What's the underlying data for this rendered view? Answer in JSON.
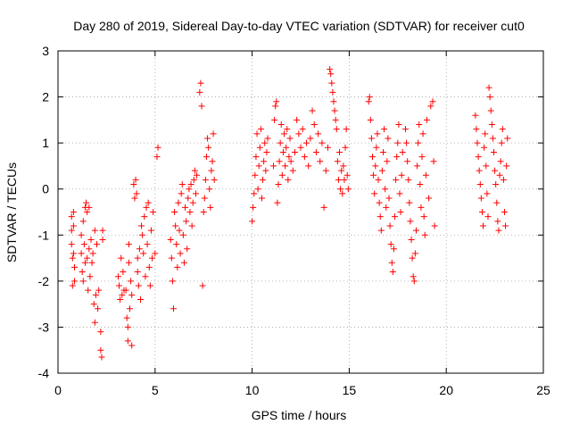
{
  "chart_data": {
    "type": "scatter",
    "title": "Day 280 of 2019, Sidereal Day-to-day VTEC variation (SDTVAR) for receiver cut0",
    "xlabel": "GPS time / hours",
    "ylabel": "SDTVAR / TECUs",
    "xlim": [
      0,
      25
    ],
    "ylim": [
      -4,
      3
    ],
    "xticks": [
      0,
      5,
      10,
      15,
      20,
      25
    ],
    "yticks": [
      -4,
      -3,
      -2,
      -1,
      0,
      1,
      2,
      3
    ],
    "xtick_labels": [
      "0",
      "5",
      "10",
      "15",
      "20",
      "25"
    ],
    "ytick_labels": [
      "-4",
      "-3",
      "-2",
      "-1",
      "0",
      "1",
      "2",
      "3"
    ],
    "grid": true,
    "marker": "+",
    "marker_color": "#ff0000",
    "series": [
      {
        "name": "SDTVAR",
        "points": [
          [
            0.7,
            -0.6
          ],
          [
            0.7,
            -0.9
          ],
          [
            0.7,
            -1.2
          ],
          [
            0.75,
            -1.5
          ],
          [
            0.75,
            -2.1
          ],
          [
            0.8,
            -0.5
          ],
          [
            0.8,
            -0.8
          ],
          [
            0.8,
            -1.4
          ],
          [
            0.85,
            -1.7
          ],
          [
            0.85,
            -2.0
          ],
          [
            1.2,
            -1.0
          ],
          [
            1.2,
            -1.4
          ],
          [
            1.25,
            -1.8
          ],
          [
            1.3,
            -0.7
          ],
          [
            1.3,
            -2.0
          ],
          [
            1.35,
            -1.2
          ],
          [
            1.4,
            -0.4
          ],
          [
            1.4,
            -1.6
          ],
          [
            1.45,
            -0.3
          ],
          [
            1.5,
            -0.5
          ],
          [
            1.5,
            -1.5
          ],
          [
            1.55,
            -2.2
          ],
          [
            1.6,
            -0.4
          ],
          [
            1.6,
            -1.3
          ],
          [
            1.65,
            -1.9
          ],
          [
            1.7,
            -1.1
          ],
          [
            1.75,
            -1.6
          ],
          [
            1.8,
            -1.4
          ],
          [
            1.85,
            -2.5
          ],
          [
            1.9,
            -2.9
          ],
          [
            1.9,
            -0.9
          ],
          [
            1.95,
            -2.3
          ],
          [
            2.0,
            -1.2
          ],
          [
            2.05,
            -2.6
          ],
          [
            2.1,
            -2.2
          ],
          [
            2.2,
            -3.1
          ],
          [
            2.2,
            -3.5
          ],
          [
            2.25,
            -3.65
          ],
          [
            2.3,
            -0.9
          ],
          [
            2.3,
            -1.1
          ],
          [
            3.1,
            -1.9
          ],
          [
            3.15,
            -2.1
          ],
          [
            3.2,
            -2.4
          ],
          [
            3.25,
            -1.5
          ],
          [
            3.3,
            -2.3
          ],
          [
            3.35,
            -1.8
          ],
          [
            3.4,
            -2.2
          ],
          [
            3.5,
            -2.2
          ],
          [
            3.55,
            -2.8
          ],
          [
            3.6,
            -3.0
          ],
          [
            3.6,
            -3.3
          ],
          [
            3.65,
            -1.2
          ],
          [
            3.65,
            -1.6
          ],
          [
            3.7,
            -2.6
          ],
          [
            3.75,
            -2.0
          ],
          [
            3.8,
            -2.3
          ],
          [
            3.8,
            -3.4
          ],
          [
            3.9,
            0.1
          ],
          [
            3.95,
            -0.2
          ],
          [
            4.0,
            0.2
          ],
          [
            4.05,
            -0.1
          ],
          [
            4.1,
            -1.5
          ],
          [
            4.1,
            -1.8
          ],
          [
            4.15,
            -2.1
          ],
          [
            4.2,
            -1.3
          ],
          [
            4.25,
            -2.4
          ],
          [
            4.3,
            -0.8
          ],
          [
            4.35,
            -1.0
          ],
          [
            4.4,
            -1.4
          ],
          [
            4.45,
            -0.6
          ],
          [
            4.5,
            -1.9
          ],
          [
            4.55,
            -0.4
          ],
          [
            4.6,
            -1.2
          ],
          [
            4.65,
            -0.3
          ],
          [
            4.7,
            -1.7
          ],
          [
            4.75,
            -2.1
          ],
          [
            4.8,
            -0.9
          ],
          [
            4.85,
            -1.5
          ],
          [
            4.9,
            -0.5
          ],
          [
            5.0,
            -1.4
          ],
          [
            5.1,
            0.7
          ],
          [
            5.15,
            0.9
          ],
          [
            5.8,
            -1.1
          ],
          [
            5.85,
            -1.5
          ],
          [
            5.9,
            -2.0
          ],
          [
            5.95,
            -2.6
          ],
          [
            6.0,
            -0.5
          ],
          [
            6.05,
            -0.8
          ],
          [
            6.1,
            -1.2
          ],
          [
            6.15,
            -1.7
          ],
          [
            6.2,
            -0.3
          ],
          [
            6.25,
            -0.9
          ],
          [
            6.3,
            -1.4
          ],
          [
            6.35,
            -0.1
          ],
          [
            6.4,
            0.1
          ],
          [
            6.45,
            -1.0
          ],
          [
            6.5,
            -1.6
          ],
          [
            6.55,
            -0.4
          ],
          [
            6.6,
            -0.7
          ],
          [
            6.65,
            -1.3
          ],
          [
            6.7,
            -0.2
          ],
          [
            6.75,
            0.0
          ],
          [
            6.8,
            -0.5
          ],
          [
            6.85,
            0.1
          ],
          [
            6.9,
            -0.8
          ],
          [
            6.95,
            -0.3
          ],
          [
            7.0,
            0.2
          ],
          [
            7.05,
            0.4
          ],
          [
            7.1,
            -0.1
          ],
          [
            7.15,
            0.3
          ],
          [
            7.3,
            2.1
          ],
          [
            7.35,
            2.3
          ],
          [
            7.4,
            1.8
          ],
          [
            7.45,
            -2.1
          ],
          [
            7.5,
            -0.5
          ],
          [
            7.55,
            -0.2
          ],
          [
            7.6,
            0.2
          ],
          [
            7.65,
            0.7
          ],
          [
            7.7,
            1.1
          ],
          [
            7.75,
            0.9
          ],
          [
            7.8,
            0.0
          ],
          [
            7.85,
            -0.4
          ],
          [
            7.9,
            0.4
          ],
          [
            7.95,
            0.6
          ],
          [
            8.0,
            1.2
          ],
          [
            8.05,
            0.2
          ],
          [
            10.0,
            -0.7
          ],
          [
            10.05,
            -0.4
          ],
          [
            10.1,
            -0.1
          ],
          [
            10.15,
            0.3
          ],
          [
            10.2,
            0.7
          ],
          [
            10.25,
            1.2
          ],
          [
            10.3,
            0.0
          ],
          [
            10.35,
            0.5
          ],
          [
            10.4,
            0.9
          ],
          [
            10.45,
            1.3
          ],
          [
            10.5,
            -0.2
          ],
          [
            10.55,
            0.2
          ],
          [
            10.6,
            0.6
          ],
          [
            10.65,
            1.0
          ],
          [
            10.7,
            0.4
          ],
          [
            10.75,
            0.8
          ],
          [
            10.8,
            1.1
          ],
          [
            11.1,
            0.5
          ],
          [
            11.15,
            1.5
          ],
          [
            11.2,
            1.8
          ],
          [
            11.25,
            1.9
          ],
          [
            11.3,
            -0.3
          ],
          [
            11.35,
            0.1
          ],
          [
            11.4,
            0.6
          ],
          [
            11.45,
            1.0
          ],
          [
            11.5,
            1.4
          ],
          [
            11.55,
            0.3
          ],
          [
            11.6,
            0.8
          ],
          [
            11.65,
            1.2
          ],
          [
            11.7,
            0.5
          ],
          [
            11.75,
            0.9
          ],
          [
            11.8,
            1.3
          ],
          [
            11.85,
            0.2
          ],
          [
            11.9,
            0.7
          ],
          [
            11.95,
            1.1
          ],
          [
            12.0,
            0.6
          ],
          [
            12.1,
            0.4
          ],
          [
            12.2,
            0.8
          ],
          [
            12.3,
            1.5
          ],
          [
            12.4,
            1.2
          ],
          [
            12.5,
            0.9
          ],
          [
            12.6,
            1.3
          ],
          [
            12.7,
            0.7
          ],
          [
            12.8,
            1.0
          ],
          [
            12.9,
            0.5
          ],
          [
            13.0,
            1.1
          ],
          [
            13.1,
            1.7
          ],
          [
            13.2,
            1.4
          ],
          [
            13.3,
            0.8
          ],
          [
            13.4,
            1.2
          ],
          [
            13.5,
            0.6
          ],
          [
            13.6,
            1.0
          ],
          [
            13.7,
            -0.4
          ],
          [
            13.8,
            0.4
          ],
          [
            13.9,
            0.9
          ],
          [
            14.0,
            2.6
          ],
          [
            14.05,
            2.5
          ],
          [
            14.1,
            2.3
          ],
          [
            14.15,
            2.1
          ],
          [
            14.2,
            1.9
          ],
          [
            14.25,
            1.7
          ],
          [
            14.3,
            1.5
          ],
          [
            14.35,
            1.3
          ],
          [
            14.4,
            0.6
          ],
          [
            14.45,
            0.2
          ],
          [
            14.5,
            0.8
          ],
          [
            14.55,
            0.0
          ],
          [
            14.6,
            0.4
          ],
          [
            14.65,
            -0.1
          ],
          [
            14.7,
            0.5
          ],
          [
            14.75,
            0.2
          ],
          [
            14.8,
            0.9
          ],
          [
            14.85,
            1.3
          ],
          [
            14.9,
            0.3
          ],
          [
            14.95,
            0.0
          ],
          [
            16.0,
            1.9
          ],
          [
            16.05,
            2.0
          ],
          [
            16.1,
            1.5
          ],
          [
            16.15,
            1.1
          ],
          [
            16.2,
            0.7
          ],
          [
            16.25,
            0.3
          ],
          [
            16.3,
            -0.1
          ],
          [
            16.35,
            0.5
          ],
          [
            16.4,
            0.9
          ],
          [
            16.45,
            1.2
          ],
          [
            16.5,
            0.2
          ],
          [
            16.55,
            -0.3
          ],
          [
            16.6,
            -0.6
          ],
          [
            16.65,
            -0.9
          ],
          [
            16.7,
            0.4
          ],
          [
            16.75,
            0.8
          ],
          [
            16.8,
            1.3
          ],
          [
            16.85,
            0.0
          ],
          [
            16.9,
            -0.4
          ],
          [
            16.95,
            0.6
          ],
          [
            17.0,
            1.1
          ],
          [
            17.05,
            -0.2
          ],
          [
            17.1,
            -0.8
          ],
          [
            17.15,
            -1.2
          ],
          [
            17.2,
            -1.6
          ],
          [
            17.25,
            -1.8
          ],
          [
            17.3,
            -1.3
          ],
          [
            17.35,
            -0.6
          ],
          [
            17.4,
            0.2
          ],
          [
            17.45,
            0.7
          ],
          [
            17.5,
            1.0
          ],
          [
            17.55,
            1.4
          ],
          [
            17.6,
            -0.1
          ],
          [
            17.65,
            -0.5
          ],
          [
            17.7,
            0.3
          ],
          [
            17.75,
            0.8
          ],
          [
            17.9,
            1.3
          ],
          [
            17.95,
            1.0
          ],
          [
            18.0,
            0.6
          ],
          [
            18.05,
            0.2
          ],
          [
            18.1,
            -0.3
          ],
          [
            18.15,
            -0.7
          ],
          [
            18.2,
            -1.1
          ],
          [
            18.25,
            -1.5
          ],
          [
            18.3,
            -1.9
          ],
          [
            18.35,
            -2.0
          ],
          [
            18.4,
            -1.4
          ],
          [
            18.45,
            -0.9
          ],
          [
            18.5,
            0.5
          ],
          [
            18.55,
            1.0
          ],
          [
            18.6,
            1.4
          ],
          [
            18.65,
            0.1
          ],
          [
            18.7,
            -0.4
          ],
          [
            18.75,
            0.7
          ],
          [
            18.8,
            1.2
          ],
          [
            18.85,
            -0.6
          ],
          [
            18.9,
            -1.0
          ],
          [
            18.95,
            0.3
          ],
          [
            19.0,
            1.5
          ],
          [
            19.1,
            -0.2
          ],
          [
            19.2,
            1.8
          ],
          [
            19.3,
            1.9
          ],
          [
            19.35,
            0.6
          ],
          [
            19.4,
            -0.8
          ],
          [
            21.5,
            1.6
          ],
          [
            21.55,
            1.3
          ],
          [
            21.6,
            1.0
          ],
          [
            21.65,
            0.7
          ],
          [
            21.7,
            0.4
          ],
          [
            21.75,
            0.1
          ],
          [
            21.8,
            -0.2
          ],
          [
            21.85,
            -0.5
          ],
          [
            21.9,
            -0.8
          ],
          [
            21.95,
            0.9
          ],
          [
            22.0,
            1.2
          ],
          [
            22.05,
            0.5
          ],
          [
            22.1,
            -0.1
          ],
          [
            22.15,
            -0.6
          ],
          [
            22.2,
            2.2
          ],
          [
            22.25,
            2.0
          ],
          [
            22.3,
            1.7
          ],
          [
            22.35,
            1.4
          ],
          [
            22.4,
            1.1
          ],
          [
            22.45,
            0.8
          ],
          [
            22.5,
            0.4
          ],
          [
            22.55,
            0.1
          ],
          [
            22.6,
            -0.3
          ],
          [
            22.65,
            -0.7
          ],
          [
            22.7,
            -0.9
          ],
          [
            22.75,
            0.3
          ],
          [
            22.8,
            0.6
          ],
          [
            22.85,
            1.0
          ],
          [
            22.9,
            1.3
          ],
          [
            22.95,
            0.2
          ],
          [
            23.0,
            -0.5
          ],
          [
            23.05,
            -0.8
          ],
          [
            23.1,
            0.5
          ],
          [
            23.15,
            1.1
          ]
        ]
      }
    ]
  }
}
